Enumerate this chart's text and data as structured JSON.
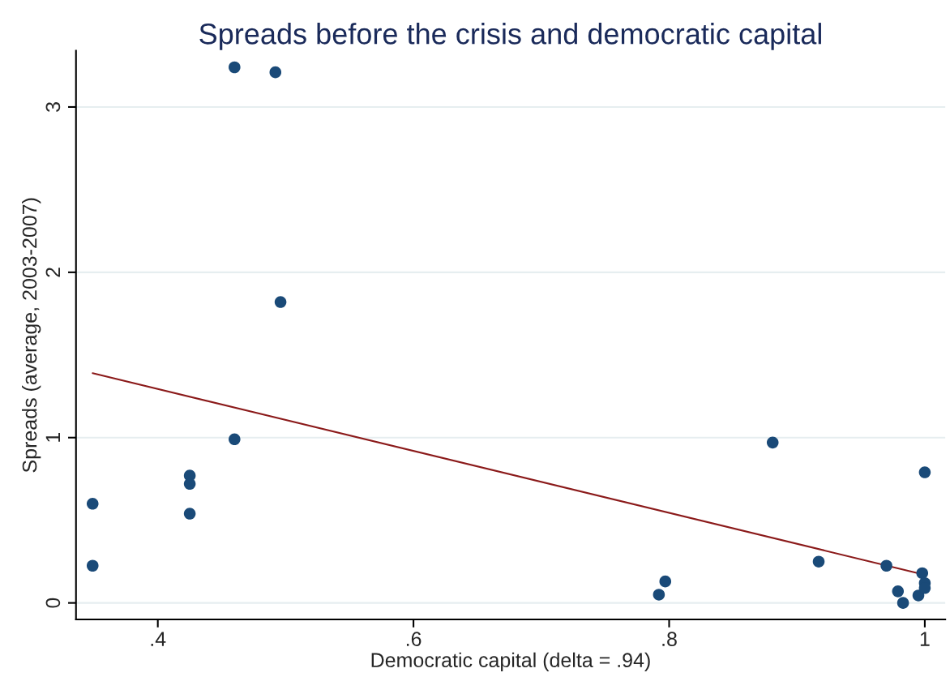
{
  "chart_data": {
    "type": "scatter",
    "title": "Spreads before the crisis and democratic capital",
    "xlabel": "Democratic capital (delta = .94)",
    "ylabel": "Spreads (average, 2003-2007)",
    "xlim": [
      0.336,
      1.016
    ],
    "ylim": [
      -0.1,
      3.34
    ],
    "xticks": [
      {
        "value": 0.4,
        "label": ".4"
      },
      {
        "value": 0.6,
        "label": ".6"
      },
      {
        "value": 0.8,
        "label": ".8"
      },
      1
    ],
    "yticks": [
      0,
      1,
      2,
      3
    ],
    "grid": "y",
    "marker": "circle",
    "legend": false,
    "series": [
      {
        "color": "#1a4a78",
        "x": [
          0.349,
          0.349,
          0.425,
          0.425,
          0.425,
          0.46,
          0.492,
          0.496,
          0.46,
          0.792,
          0.797,
          0.881,
          0.917,
          0.97,
          0.979,
          0.983,
          0.995,
          0.998,
          1.0,
          1.0,
          1.0
        ],
        "values": [
          0.6,
          0.225,
          0.77,
          0.72,
          0.54,
          3.24,
          3.21,
          1.82,
          0.99,
          0.05,
          0.13,
          0.97,
          0.25,
          0.225,
          0.07,
          0.0,
          0.045,
          0.18,
          0.12,
          0.09,
          0.79
        ]
      },
      {
        "type": "line",
        "color": "#8b1a1a",
        "marker": "none",
        "x": [
          0.349,
          1.0
        ],
        "values": [
          1.39,
          0.17
        ]
      }
    ]
  }
}
